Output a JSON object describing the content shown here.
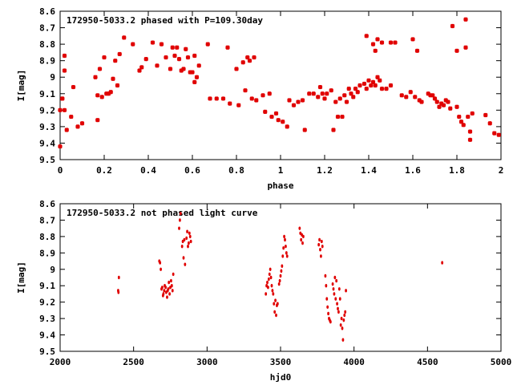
{
  "chart_data": [
    {
      "type": "scatter",
      "title": "172950-5033.2 phased with P=109.30day",
      "xlabel": "phase",
      "ylabel": "I[mag]",
      "xlim": [
        0,
        2
      ],
      "ylim": [
        9.5,
        8.6
      ],
      "y_inverted": true,
      "grid": false,
      "color": "#e00000",
      "xticks": [
        "0",
        "0.2",
        "0.4",
        "0.6",
        "0.8",
        "1",
        "1.2",
        "1.4",
        "1.6",
        "1.8",
        "2"
      ],
      "yticks": [
        "8.6",
        "8.7",
        "8.8",
        "8.9",
        "9",
        "9.1",
        "9.2",
        "9.3",
        "9.4",
        "9.5"
      ],
      "points": [
        [
          0.0,
          9.2
        ],
        [
          0.0,
          9.42
        ],
        [
          0.01,
          9.13
        ],
        [
          0.01,
          9.13
        ],
        [
          0.02,
          8.96
        ],
        [
          0.02,
          8.87
        ],
        [
          0.02,
          9.2
        ],
        [
          0.03,
          9.32
        ],
        [
          0.05,
          9.24
        ],
        [
          0.06,
          9.06
        ],
        [
          0.08,
          9.3
        ],
        [
          0.1,
          9.28
        ],
        [
          0.16,
          9.0
        ],
        [
          0.17,
          9.11
        ],
        [
          0.17,
          9.26
        ],
        [
          0.18,
          8.95
        ],
        [
          0.19,
          9.12
        ],
        [
          0.2,
          8.88
        ],
        [
          0.21,
          9.1
        ],
        [
          0.22,
          9.1
        ],
        [
          0.23,
          9.09
        ],
        [
          0.24,
          9.01
        ],
        [
          0.25,
          8.9
        ],
        [
          0.26,
          9.05
        ],
        [
          0.27,
          8.86
        ],
        [
          0.29,
          8.76
        ],
        [
          0.33,
          8.8
        ],
        [
          0.36,
          8.96
        ],
        [
          0.37,
          8.94
        ],
        [
          0.39,
          8.89
        ],
        [
          0.42,
          8.79
        ],
        [
          0.44,
          8.93
        ],
        [
          0.46,
          8.8
        ],
        [
          0.48,
          8.88
        ],
        [
          0.5,
          8.95
        ],
        [
          0.51,
          8.82
        ],
        [
          0.52,
          8.87
        ],
        [
          0.53,
          8.82
        ],
        [
          0.54,
          8.89
        ],
        [
          0.55,
          8.96
        ],
        [
          0.56,
          8.95
        ],
        [
          0.57,
          8.83
        ],
        [
          0.58,
          8.88
        ],
        [
          0.59,
          8.97
        ],
        [
          0.6,
          8.97
        ],
        [
          0.61,
          9.03
        ],
        [
          0.62,
          9.0
        ],
        [
          0.63,
          8.93
        ],
        [
          0.61,
          8.87
        ],
        [
          0.67,
          8.8
        ],
        [
          0.68,
          9.13
        ],
        [
          0.71,
          9.13
        ],
        [
          0.74,
          9.13
        ],
        [
          0.76,
          8.82
        ],
        [
          0.77,
          9.16
        ],
        [
          0.8,
          8.95
        ],
        [
          0.81,
          9.17
        ],
        [
          0.83,
          8.91
        ],
        [
          0.84,
          9.08
        ],
        [
          0.85,
          8.88
        ],
        [
          0.86,
          8.9
        ],
        [
          0.87,
          9.13
        ],
        [
          0.88,
          8.88
        ],
        [
          0.89,
          9.14
        ],
        [
          0.92,
          9.11
        ],
        [
          0.93,
          9.21
        ],
        [
          0.95,
          9.1
        ],
        [
          0.96,
          9.24
        ],
        [
          0.98,
          9.22
        ],
        [
          0.99,
          9.26
        ],
        [
          1.01,
          9.27
        ],
        [
          1.03,
          9.3
        ],
        [
          1.04,
          9.14
        ],
        [
          1.06,
          9.17
        ],
        [
          1.08,
          9.15
        ],
        [
          1.1,
          9.14
        ],
        [
          1.11,
          9.32
        ],
        [
          1.13,
          9.1
        ],
        [
          1.15,
          9.1
        ],
        [
          1.17,
          9.12
        ],
        [
          1.18,
          9.06
        ],
        [
          1.19,
          9.1
        ],
        [
          1.2,
          9.13
        ],
        [
          1.21,
          9.1
        ],
        [
          1.23,
          9.08
        ],
        [
          1.24,
          9.32
        ],
        [
          1.25,
          9.15
        ],
        [
          1.26,
          9.24
        ],
        [
          1.27,
          9.13
        ],
        [
          1.28,
          9.24
        ],
        [
          1.29,
          9.11
        ],
        [
          1.3,
          9.15
        ],
        [
          1.31,
          9.07
        ],
        [
          1.32,
          9.1
        ],
        [
          1.33,
          9.12
        ],
        [
          1.34,
          9.07
        ],
        [
          1.35,
          9.09
        ],
        [
          1.36,
          9.05
        ],
        [
          1.38,
          9.04
        ],
        [
          1.39,
          9.07
        ],
        [
          1.4,
          9.02
        ],
        [
          1.41,
          9.05
        ],
        [
          1.42,
          9.03
        ],
        [
          1.43,
          9.05
        ],
        [
          1.44,
          9.0
        ],
        [
          1.45,
          9.02
        ],
        [
          1.46,
          9.07
        ],
        [
          1.48,
          9.07
        ],
        [
          1.5,
          9.05
        ],
        [
          1.39,
          8.75
        ],
        [
          1.42,
          8.8
        ],
        [
          1.43,
          8.84
        ],
        [
          1.44,
          8.77
        ],
        [
          1.46,
          8.79
        ],
        [
          1.5,
          8.79
        ],
        [
          1.52,
          8.79
        ],
        [
          1.55,
          9.11
        ],
        [
          1.57,
          9.12
        ],
        [
          1.59,
          9.09
        ],
        [
          1.6,
          8.77
        ],
        [
          1.61,
          9.12
        ],
        [
          1.62,
          8.84
        ],
        [
          1.63,
          9.14
        ],
        [
          1.64,
          9.15
        ],
        [
          1.67,
          9.1
        ],
        [
          1.68,
          9.11
        ],
        [
          1.69,
          9.11
        ],
        [
          1.7,
          9.13
        ],
        [
          1.71,
          9.15
        ],
        [
          1.72,
          9.18
        ],
        [
          1.73,
          9.16
        ],
        [
          1.74,
          9.17
        ],
        [
          1.75,
          9.14
        ],
        [
          1.76,
          9.15
        ],
        [
          1.77,
          9.19
        ],
        [
          1.78,
          8.69
        ],
        [
          1.8,
          9.18
        ],
        [
          1.8,
          8.84
        ],
        [
          1.81,
          9.24
        ],
        [
          1.82,
          9.27
        ],
        [
          1.83,
          9.29
        ],
        [
          1.84,
          8.65
        ],
        [
          1.84,
          8.82
        ],
        [
          1.85,
          9.24
        ],
        [
          1.86,
          9.33
        ],
        [
          1.86,
          9.38
        ],
        [
          1.87,
          9.22
        ],
        [
          1.93,
          9.23
        ],
        [
          1.95,
          9.28
        ],
        [
          1.97,
          9.34
        ],
        [
          1.99,
          9.35
        ]
      ]
    },
    {
      "type": "scatter",
      "title": "172950-5033.2 not phased light curve",
      "xlabel": "hjd0",
      "ylabel": "I[mag]",
      "xlim": [
        2000,
        5000
      ],
      "ylim": [
        9.5,
        8.6
      ],
      "y_inverted": true,
      "grid": false,
      "color": "#e00000",
      "xticks": [
        "2000",
        "2500",
        "3000",
        "3500",
        "4000",
        "4500",
        "5000"
      ],
      "yticks": [
        "8.6",
        "8.7",
        "8.8",
        "8.9",
        "9",
        "9.1",
        "9.2",
        "9.3",
        "9.4",
        "9.5"
      ],
      "points": [
        [
          2395,
          9.13
        ],
        [
          2397,
          9.14
        ],
        [
          2400,
          9.05
        ],
        [
          2675,
          8.95
        ],
        [
          2680,
          8.96
        ],
        [
          2685,
          9.0
        ],
        [
          2690,
          9.12
        ],
        [
          2695,
          9.11
        ],
        [
          2700,
          9.16
        ],
        [
          2703,
          9.15
        ],
        [
          2708,
          9.13
        ],
        [
          2712,
          9.1
        ],
        [
          2718,
          9.11
        ],
        [
          2722,
          9.14
        ],
        [
          2728,
          9.17
        ],
        [
          2732,
          9.13
        ],
        [
          2736,
          9.12
        ],
        [
          2740,
          9.08
        ],
        [
          2745,
          9.15
        ],
        [
          2750,
          9.11
        ],
        [
          2755,
          9.07
        ],
        [
          2760,
          9.1
        ],
        [
          2765,
          9.13
        ],
        [
          2770,
          9.03
        ],
        [
          2810,
          8.75
        ],
        [
          2815,
          8.7
        ],
        [
          2820,
          8.66
        ],
        [
          2830,
          8.86
        ],
        [
          2835,
          8.83
        ],
        [
          2840,
          8.93
        ],
        [
          2845,
          8.82
        ],
        [
          2850,
          8.97
        ],
        [
          2860,
          8.81
        ],
        [
          2865,
          8.77
        ],
        [
          2870,
          8.86
        ],
        [
          2875,
          8.84
        ],
        [
          2880,
          8.78
        ],
        [
          2885,
          8.8
        ],
        [
          2890,
          8.83
        ],
        [
          3400,
          9.15
        ],
        [
          3405,
          9.1
        ],
        [
          3410,
          9.08
        ],
        [
          3415,
          9.11
        ],
        [
          3420,
          9.06
        ],
        [
          3425,
          9.03
        ],
        [
          3430,
          9.0
        ],
        [
          3435,
          9.05
        ],
        [
          3440,
          9.1
        ],
        [
          3445,
          9.13
        ],
        [
          3450,
          9.15
        ],
        [
          3455,
          9.21
        ],
        [
          3460,
          9.26
        ],
        [
          3465,
          9.19
        ],
        [
          3470,
          9.28
        ],
        [
          3475,
          9.22
        ],
        [
          3480,
          9.21
        ],
        [
          3490,
          9.09
        ],
        [
          3495,
          9.07
        ],
        [
          3500,
          9.04
        ],
        [
          3505,
          9.01
        ],
        [
          3510,
          8.98
        ],
        [
          3515,
          8.92
        ],
        [
          3520,
          8.87
        ],
        [
          3525,
          8.8
        ],
        [
          3530,
          8.82
        ],
        [
          3535,
          8.86
        ],
        [
          3540,
          8.9
        ],
        [
          3545,
          8.92
        ],
        [
          3630,
          8.75
        ],
        [
          3635,
          8.78
        ],
        [
          3640,
          8.82
        ],
        [
          3645,
          8.79
        ],
        [
          3650,
          8.84
        ],
        [
          3655,
          8.8
        ],
        [
          3760,
          8.85
        ],
        [
          3765,
          8.82
        ],
        [
          3770,
          8.88
        ],
        [
          3775,
          8.92
        ],
        [
          3780,
          8.83
        ],
        [
          3785,
          8.86
        ],
        [
          3805,
          9.04
        ],
        [
          3810,
          9.1
        ],
        [
          3815,
          9.18
        ],
        [
          3820,
          9.23
        ],
        [
          3825,
          9.27
        ],
        [
          3830,
          9.3
        ],
        [
          3835,
          9.31
        ],
        [
          3840,
          9.32
        ],
        [
          3855,
          9.09
        ],
        [
          3860,
          9.12
        ],
        [
          3865,
          9.15
        ],
        [
          3870,
          9.05
        ],
        [
          3875,
          9.18
        ],
        [
          3880,
          9.07
        ],
        [
          3885,
          9.21
        ],
        [
          3890,
          9.24
        ],
        [
          3895,
          9.26
        ],
        [
          3900,
          9.12
        ],
        [
          3905,
          9.18
        ],
        [
          3910,
          9.34
        ],
        [
          3915,
          9.3
        ],
        [
          3920,
          9.36
        ],
        [
          3925,
          9.43
        ],
        [
          3930,
          9.31
        ],
        [
          3935,
          9.28
        ],
        [
          3940,
          9.26
        ],
        [
          3945,
          9.13
        ],
        [
          4600,
          8.96
        ]
      ]
    }
  ]
}
